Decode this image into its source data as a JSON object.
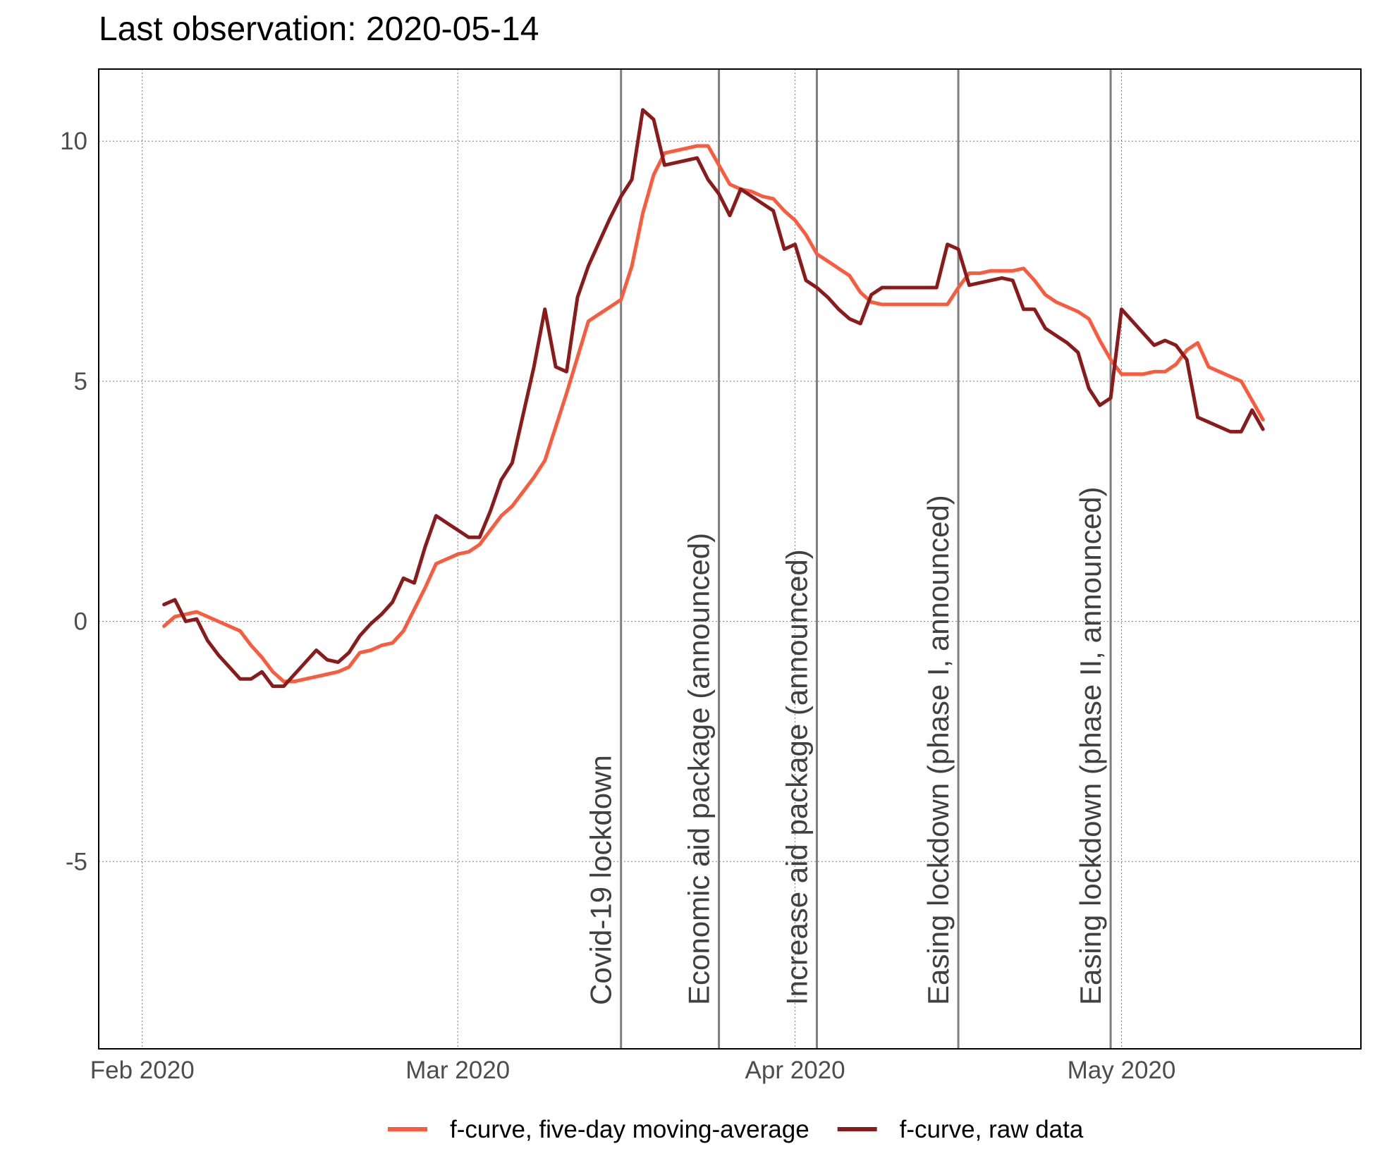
{
  "chart_data": {
    "type": "line",
    "title": "Last observation: 2020-05-14",
    "xlabel": "",
    "ylabel": "",
    "x_axis": {
      "type": "date",
      "range": [
        "2020-01-28",
        "2020-05-23"
      ],
      "ticks": [
        {
          "date": "2020-02-01",
          "label": "Feb 2020"
        },
        {
          "date": "2020-03-01",
          "label": "Mar 2020"
        },
        {
          "date": "2020-04-01",
          "label": "Apr 2020"
        },
        {
          "date": "2020-05-01",
          "label": "May 2020"
        }
      ]
    },
    "y_axis": {
      "range": [
        -8.9,
        11.5
      ],
      "ticks": [
        {
          "value": -5,
          "label": "-5"
        },
        {
          "value": 0,
          "label": "0"
        },
        {
          "value": 5,
          "label": "5"
        },
        {
          "value": 10,
          "label": "10"
        }
      ]
    },
    "grid": true,
    "legend_position": "bottom",
    "events": [
      {
        "date": "2020-03-16",
        "label": "Covid-19 lockdown"
      },
      {
        "date": "2020-03-25",
        "label": "Economic aid package (announced)"
      },
      {
        "date": "2020-04-03",
        "label": "Increase aid package (announced)"
      },
      {
        "date": "2020-04-16",
        "label": "Easing lockdown (phase I, announced)"
      },
      {
        "date": "2020-04-30",
        "label": "Easing lockdown (phase II, announced)"
      }
    ],
    "series": [
      {
        "name": "f-curve, five-day moving-average",
        "color": "#fb5b3c",
        "points": [
          [
            "2020-02-03",
            -0.1
          ],
          [
            "2020-02-04",
            0.1
          ],
          [
            "2020-02-05",
            0.15
          ],
          [
            "2020-02-06",
            0.2
          ],
          [
            "2020-02-07",
            0.1
          ],
          [
            "2020-02-08",
            0.0
          ],
          [
            "2020-02-09",
            -0.1
          ],
          [
            "2020-02-10",
            -0.2
          ],
          [
            "2020-02-11",
            -0.5
          ],
          [
            "2020-02-12",
            -0.75
          ],
          [
            "2020-02-13",
            -1.05
          ],
          [
            "2020-02-14",
            -1.25
          ],
          [
            "2020-02-15",
            -1.25
          ],
          [
            "2020-02-16",
            -1.2
          ],
          [
            "2020-02-17",
            -1.15
          ],
          [
            "2020-02-18",
            -1.1
          ],
          [
            "2020-02-19",
            -1.05
          ],
          [
            "2020-02-20",
            -0.95
          ],
          [
            "2020-02-21",
            -0.65
          ],
          [
            "2020-02-22",
            -0.6
          ],
          [
            "2020-02-23",
            -0.5
          ],
          [
            "2020-02-24",
            -0.45
          ],
          [
            "2020-02-25",
            -0.2
          ],
          [
            "2020-02-26",
            0.25
          ],
          [
            "2020-02-27",
            0.7
          ],
          [
            "2020-02-28",
            1.2
          ],
          [
            "2020-02-29",
            1.3
          ],
          [
            "2020-03-01",
            1.4
          ],
          [
            "2020-03-02",
            1.45
          ],
          [
            "2020-03-03",
            1.6
          ],
          [
            "2020-03-04",
            1.9
          ],
          [
            "2020-03-05",
            2.2
          ],
          [
            "2020-03-06",
            2.4
          ],
          [
            "2020-03-07",
            2.7
          ],
          [
            "2020-03-08",
            3.0
          ],
          [
            "2020-03-09",
            3.35
          ],
          [
            "2020-03-10",
            4.05
          ],
          [
            "2020-03-11",
            4.75
          ],
          [
            "2020-03-12",
            5.5
          ],
          [
            "2020-03-13",
            6.25
          ],
          [
            "2020-03-14",
            6.4
          ],
          [
            "2020-03-15",
            6.55
          ],
          [
            "2020-03-16",
            6.7
          ],
          [
            "2020-03-17",
            7.4
          ],
          [
            "2020-03-18",
            8.5
          ],
          [
            "2020-03-19",
            9.3
          ],
          [
            "2020-03-20",
            9.75
          ],
          [
            "2020-03-21",
            9.8
          ],
          [
            "2020-03-22",
            9.85
          ],
          [
            "2020-03-23",
            9.9
          ],
          [
            "2020-03-24",
            9.9
          ],
          [
            "2020-03-25",
            9.5
          ],
          [
            "2020-03-26",
            9.1
          ],
          [
            "2020-03-27",
            9.0
          ],
          [
            "2020-03-28",
            8.95
          ],
          [
            "2020-03-29",
            8.85
          ],
          [
            "2020-03-30",
            8.8
          ],
          [
            "2020-03-31",
            8.55
          ],
          [
            "2020-04-01",
            8.35
          ],
          [
            "2020-04-02",
            8.05
          ],
          [
            "2020-04-03",
            7.65
          ],
          [
            "2020-04-04",
            7.5
          ],
          [
            "2020-04-05",
            7.35
          ],
          [
            "2020-04-06",
            7.2
          ],
          [
            "2020-04-07",
            6.85
          ],
          [
            "2020-04-08",
            6.65
          ],
          [
            "2020-04-09",
            6.6
          ],
          [
            "2020-04-10",
            6.6
          ],
          [
            "2020-04-11",
            6.6
          ],
          [
            "2020-04-12",
            6.6
          ],
          [
            "2020-04-13",
            6.6
          ],
          [
            "2020-04-14",
            6.6
          ],
          [
            "2020-04-15",
            6.6
          ],
          [
            "2020-04-16",
            6.95
          ],
          [
            "2020-04-17",
            7.25
          ],
          [
            "2020-04-18",
            7.25
          ],
          [
            "2020-04-19",
            7.3
          ],
          [
            "2020-04-20",
            7.3
          ],
          [
            "2020-04-21",
            7.3
          ],
          [
            "2020-04-22",
            7.35
          ],
          [
            "2020-04-23",
            7.1
          ],
          [
            "2020-04-24",
            6.8
          ],
          [
            "2020-04-25",
            6.65
          ],
          [
            "2020-04-26",
            6.55
          ],
          [
            "2020-04-27",
            6.45
          ],
          [
            "2020-04-28",
            6.3
          ],
          [
            "2020-04-29",
            5.85
          ],
          [
            "2020-04-30",
            5.45
          ],
          [
            "2020-05-01",
            5.15
          ],
          [
            "2020-05-02",
            5.15
          ],
          [
            "2020-05-03",
            5.15
          ],
          [
            "2020-05-04",
            5.2
          ],
          [
            "2020-05-05",
            5.2
          ],
          [
            "2020-05-06",
            5.35
          ],
          [
            "2020-05-07",
            5.65
          ],
          [
            "2020-05-08",
            5.8
          ],
          [
            "2020-05-09",
            5.3
          ],
          [
            "2020-05-10",
            5.2
          ],
          [
            "2020-05-11",
            5.1
          ],
          [
            "2020-05-12",
            5.0
          ],
          [
            "2020-05-13",
            4.6
          ],
          [
            "2020-05-14",
            4.2
          ]
        ]
      },
      {
        "name": "f-curve, raw data",
        "color": "#8b1a1a",
        "points": [
          [
            "2020-02-03",
            0.35
          ],
          [
            "2020-02-04",
            0.45
          ],
          [
            "2020-02-05",
            0.0
          ],
          [
            "2020-02-06",
            0.05
          ],
          [
            "2020-02-07",
            -0.4
          ],
          [
            "2020-02-08",
            -0.7
          ],
          [
            "2020-02-09",
            -0.95
          ],
          [
            "2020-02-10",
            -1.2
          ],
          [
            "2020-02-11",
            -1.2
          ],
          [
            "2020-02-12",
            -1.05
          ],
          [
            "2020-02-13",
            -1.35
          ],
          [
            "2020-02-14",
            -1.35
          ],
          [
            "2020-02-15",
            -1.1
          ],
          [
            "2020-02-16",
            -0.85
          ],
          [
            "2020-02-17",
            -0.6
          ],
          [
            "2020-02-18",
            -0.8
          ],
          [
            "2020-02-19",
            -0.85
          ],
          [
            "2020-02-20",
            -0.65
          ],
          [
            "2020-02-21",
            -0.3
          ],
          [
            "2020-02-22",
            -0.05
          ],
          [
            "2020-02-23",
            0.15
          ],
          [
            "2020-02-24",
            0.4
          ],
          [
            "2020-02-25",
            0.9
          ],
          [
            "2020-02-26",
            0.8
          ],
          [
            "2020-02-27",
            1.55
          ],
          [
            "2020-02-28",
            2.2
          ],
          [
            "2020-02-29",
            2.05
          ],
          [
            "2020-03-01",
            1.9
          ],
          [
            "2020-03-02",
            1.75
          ],
          [
            "2020-03-03",
            1.75
          ],
          [
            "2020-03-04",
            2.3
          ],
          [
            "2020-03-05",
            2.95
          ],
          [
            "2020-03-06",
            3.3
          ],
          [
            "2020-03-07",
            4.3
          ],
          [
            "2020-03-08",
            5.3
          ],
          [
            "2020-03-09",
            6.5
          ],
          [
            "2020-03-10",
            5.3
          ],
          [
            "2020-03-11",
            5.2
          ],
          [
            "2020-03-12",
            6.75
          ],
          [
            "2020-03-13",
            7.4
          ],
          [
            "2020-03-14",
            7.9
          ],
          [
            "2020-03-15",
            8.4
          ],
          [
            "2020-03-16",
            8.85
          ],
          [
            "2020-03-17",
            9.2
          ],
          [
            "2020-03-18",
            10.65
          ],
          [
            "2020-03-19",
            10.45
          ],
          [
            "2020-03-20",
            9.5
          ],
          [
            "2020-03-21",
            9.55
          ],
          [
            "2020-03-22",
            9.6
          ],
          [
            "2020-03-23",
            9.65
          ],
          [
            "2020-03-24",
            9.2
          ],
          [
            "2020-03-25",
            8.9
          ],
          [
            "2020-03-26",
            8.45
          ],
          [
            "2020-03-27",
            9.0
          ],
          [
            "2020-03-28",
            8.85
          ],
          [
            "2020-03-29",
            8.7
          ],
          [
            "2020-03-30",
            8.55
          ],
          [
            "2020-03-31",
            7.75
          ],
          [
            "2020-04-01",
            7.85
          ],
          [
            "2020-04-02",
            7.1
          ],
          [
            "2020-04-03",
            6.95
          ],
          [
            "2020-04-04",
            6.75
          ],
          [
            "2020-04-05",
            6.5
          ],
          [
            "2020-04-06",
            6.3
          ],
          [
            "2020-04-07",
            6.2
          ],
          [
            "2020-04-08",
            6.8
          ],
          [
            "2020-04-09",
            6.95
          ],
          [
            "2020-04-10",
            6.95
          ],
          [
            "2020-04-11",
            6.95
          ],
          [
            "2020-04-12",
            6.95
          ],
          [
            "2020-04-13",
            6.95
          ],
          [
            "2020-04-14",
            6.95
          ],
          [
            "2020-04-15",
            7.85
          ],
          [
            "2020-04-16",
            7.75
          ],
          [
            "2020-04-17",
            7.0
          ],
          [
            "2020-04-18",
            7.05
          ],
          [
            "2020-04-19",
            7.1
          ],
          [
            "2020-04-20",
            7.15
          ],
          [
            "2020-04-21",
            7.1
          ],
          [
            "2020-04-22",
            6.5
          ],
          [
            "2020-04-23",
            6.5
          ],
          [
            "2020-04-24",
            6.1
          ],
          [
            "2020-04-25",
            5.95
          ],
          [
            "2020-04-26",
            5.8
          ],
          [
            "2020-04-27",
            5.6
          ],
          [
            "2020-04-28",
            4.85
          ],
          [
            "2020-04-29",
            4.5
          ],
          [
            "2020-04-30",
            4.65
          ],
          [
            "2020-05-01",
            6.5
          ],
          [
            "2020-05-02",
            6.25
          ],
          [
            "2020-05-03",
            6.0
          ],
          [
            "2020-05-04",
            5.75
          ],
          [
            "2020-05-05",
            5.85
          ],
          [
            "2020-05-06",
            5.75
          ],
          [
            "2020-05-07",
            5.45
          ],
          [
            "2020-05-08",
            4.25
          ],
          [
            "2020-05-09",
            4.15
          ],
          [
            "2020-05-10",
            4.05
          ],
          [
            "2020-05-11",
            3.95
          ],
          [
            "2020-05-12",
            3.95
          ],
          [
            "2020-05-13",
            4.4
          ],
          [
            "2020-05-14",
            4.0
          ]
        ]
      }
    ]
  }
}
